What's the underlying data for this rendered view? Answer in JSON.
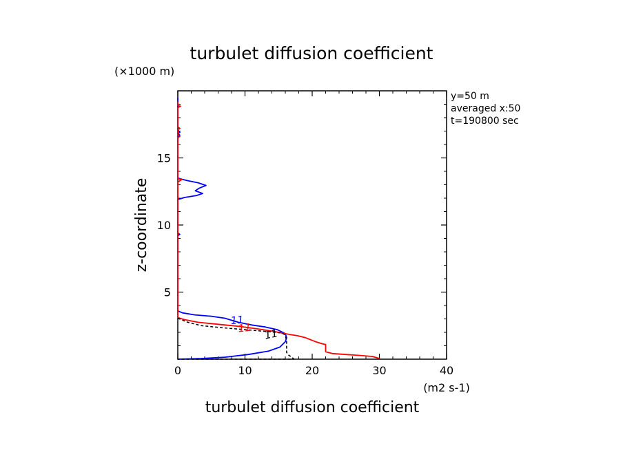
{
  "chart_data": {
    "type": "line",
    "title": "turbulet diffusion coefficient",
    "xlabel": "turbulet diffusion coefficient",
    "xunit": "(m2 s-1)",
    "ylabel": "z-coordinate",
    "yunit": "(×1000 m)",
    "xlim": [
      0,
      40
    ],
    "ylim": [
      0,
      20
    ],
    "x_ticks": [
      0,
      10,
      20,
      30,
      40
    ],
    "y_ticks": [
      5,
      10,
      15
    ],
    "x_ticks_display": [
      "0",
      "10",
      "20",
      "30",
      "40"
    ],
    "y_ticks_display": [
      "5",
      "10",
      "15"
    ],
    "x_minor_step": 2,
    "y_minor_step": 1,
    "grid": false,
    "legend": null,
    "info": [
      "y=50 m",
      "averaged  x:50",
      "t=190800 sec"
    ],
    "series": [
      {
        "color": "#0000ff",
        "dash": "solid",
        "points": [
          [
            0.0,
            19.5
          ],
          [
            0.0,
            17.3
          ],
          [
            0.3,
            17.2
          ],
          [
            0.0,
            17.1
          ],
          [
            0.3,
            16.9
          ],
          [
            0.0,
            16.8
          ],
          [
            0.3,
            16.7
          ],
          [
            0.0,
            16.5
          ],
          [
            0.0,
            13.5
          ],
          [
            0.7,
            13.4
          ],
          [
            1.5,
            13.3
          ],
          [
            3.0,
            13.15
          ],
          [
            4.2,
            12.95
          ],
          [
            3.2,
            12.75
          ],
          [
            2.6,
            12.55
          ],
          [
            3.7,
            12.35
          ],
          [
            2.8,
            12.2
          ],
          [
            1.0,
            12.05
          ],
          [
            0.0,
            11.9
          ],
          [
            0.0,
            9.4
          ],
          [
            0.3,
            9.3
          ],
          [
            0.0,
            9.2
          ],
          [
            0.0,
            3.6
          ],
          [
            0.7,
            3.45
          ],
          [
            2.5,
            3.3
          ],
          [
            5.0,
            3.2
          ],
          [
            7.0,
            3.05
          ],
          [
            9.0,
            2.75
          ],
          [
            11.0,
            2.55
          ],
          [
            13.0,
            2.4
          ],
          [
            14.8,
            2.2
          ],
          [
            16.0,
            1.9
          ],
          [
            16.2,
            1.6
          ],
          [
            16.0,
            1.3
          ],
          [
            15.2,
            0.9
          ],
          [
            13.5,
            0.6
          ],
          [
            10.5,
            0.35
          ],
          [
            7.0,
            0.15
          ],
          [
            3.5,
            0.05
          ],
          [
            0.0,
            0.0
          ]
        ]
      },
      {
        "color": "#ff0000",
        "dash": "solid",
        "points": [
          [
            0.0,
            19.2
          ],
          [
            0.0,
            18.9
          ],
          [
            0.4,
            18.85
          ],
          [
            0.0,
            18.75
          ],
          [
            0.0,
            17.3
          ],
          [
            0.3,
            17.2
          ],
          [
            0.0,
            17.1
          ],
          [
            0.0,
            16.7
          ],
          [
            0.3,
            16.6
          ],
          [
            0.0,
            16.5
          ],
          [
            0.0,
            13.45
          ],
          [
            0.6,
            13.4
          ],
          [
            0.0,
            13.2
          ],
          [
            0.0,
            3.1
          ],
          [
            1.0,
            2.95
          ],
          [
            3.0,
            2.75
          ],
          [
            6.0,
            2.6
          ],
          [
            9.0,
            2.45
          ],
          [
            12.0,
            2.25
          ],
          [
            14.5,
            2.05
          ],
          [
            16.5,
            1.85
          ],
          [
            17.8,
            1.75
          ],
          [
            19.0,
            1.6
          ],
          [
            20.5,
            1.3
          ],
          [
            21.5,
            1.15
          ],
          [
            22.0,
            1.1
          ],
          [
            22.0,
            0.55
          ],
          [
            23.0,
            0.42
          ],
          [
            25.0,
            0.35
          ],
          [
            27.0,
            0.28
          ],
          [
            29.0,
            0.2
          ],
          [
            30.0,
            0.05
          ]
        ]
      },
      {
        "color": "#000000",
        "dash": "dashed",
        "points": [
          [
            0.0,
            3.05
          ],
          [
            1.5,
            2.75
          ],
          [
            3.5,
            2.5
          ],
          [
            6.5,
            2.35
          ],
          [
            10.0,
            2.2
          ],
          [
            13.5,
            2.05
          ],
          [
            15.5,
            1.95
          ],
          [
            16.0,
            1.8
          ],
          [
            16.2,
            1.3
          ],
          [
            16.2,
            0.5
          ],
          [
            16.5,
            0.3
          ],
          [
            17.2,
            0.05
          ],
          [
            17.2,
            0.0
          ],
          [
            5.0,
            0.0
          ],
          [
            0.0,
            0.0
          ]
        ]
      }
    ],
    "contour_labels": [
      {
        "text": "11",
        "x": 8.9,
        "y": 2.65,
        "color": "#0000ff",
        "angle": -6
      },
      {
        "text": "11",
        "x": 10.0,
        "y": 2.07,
        "color": "#ff0000",
        "angle": -6
      },
      {
        "text": "11",
        "x": 14.0,
        "y": 1.6,
        "color": "#000000",
        "angle": -12
      }
    ]
  }
}
